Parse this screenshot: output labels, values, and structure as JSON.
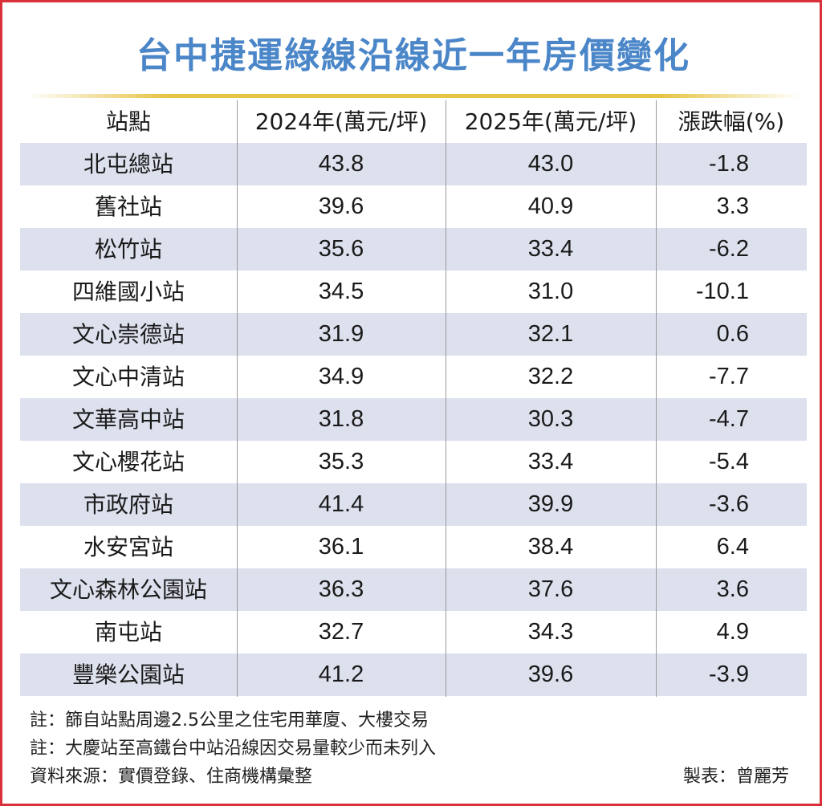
{
  "title": "台中捷運綠線沿線近一年房價變化",
  "chart_data": {
    "type": "table",
    "title": "台中捷運綠線沿線近一年房價變化",
    "columns": [
      "站點",
      "2024年(萬元/坪)",
      "2025年(萬元/坪)",
      "漲跌幅(%)"
    ],
    "rows": [
      {
        "station": "北屯總站",
        "y2024": "43.8",
        "y2025": "43.0",
        "change": "-1.8"
      },
      {
        "station": "舊社站",
        "y2024": "39.6",
        "y2025": "40.9",
        "change": "3.3"
      },
      {
        "station": "松竹站",
        "y2024": "35.6",
        "y2025": "33.4",
        "change": "-6.2"
      },
      {
        "station": "四維國小站",
        "y2024": "34.5",
        "y2025": "31.0",
        "change": "-10.1"
      },
      {
        "station": "文心崇德站",
        "y2024": "31.9",
        "y2025": "32.1",
        "change": "0.6"
      },
      {
        "station": "文心中清站",
        "y2024": "34.9",
        "y2025": "32.2",
        "change": "-7.7"
      },
      {
        "station": "文華高中站",
        "y2024": "31.8",
        "y2025": "30.3",
        "change": "-4.7"
      },
      {
        "station": "文心櫻花站",
        "y2024": "35.3",
        "y2025": "33.4",
        "change": "-5.4"
      },
      {
        "station": "市政府站",
        "y2024": "41.4",
        "y2025": "39.9",
        "change": "-3.6"
      },
      {
        "station": "水安宮站",
        "y2024": "36.1",
        "y2025": "38.4",
        "change": "6.4"
      },
      {
        "station": "文心森林公園站",
        "y2024": "36.3",
        "y2025": "37.6",
        "change": "3.6"
      },
      {
        "station": "南屯站",
        "y2024": "32.7",
        "y2025": "34.3",
        "change": "4.9"
      },
      {
        "station": "豐樂公園站",
        "y2024": "41.2",
        "y2025": "39.6",
        "change": "-3.9"
      }
    ]
  },
  "notes": [
    "註：篩自站點周邊2.5公里之住宅用華廈、大樓交易",
    "註：大慶站至高鐵台中站沿線因交易量較少而未列入",
    "資料來源：實價登錄、住商機構彙整"
  ],
  "credit": "製表：曾麗芳",
  "colors": {
    "title": "#4a86c8",
    "row_shade": "#dde1ee",
    "border": "#d9303a",
    "rule": "#e6c446"
  }
}
